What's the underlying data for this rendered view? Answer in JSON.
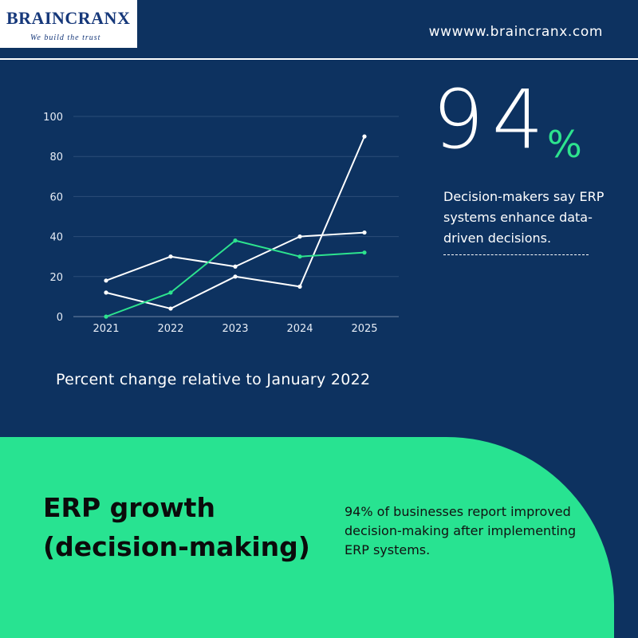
{
  "brand": {
    "logo_text": "BRAINCRANX",
    "tagline": "We build the trust",
    "url": "wwwww.braincranx.com"
  },
  "colors": {
    "background": "#0d3260",
    "accent_green": "#28e391",
    "line_white": "#ffffff",
    "line_green": "#2de38e"
  },
  "chart_data": {
    "type": "line",
    "categories": [
      "2021",
      "2022",
      "2023",
      "2024",
      "2025"
    ],
    "series": [
      {
        "values": [
          18,
          30,
          25,
          40,
          42
        ],
        "color": "#ffffff"
      },
      {
        "values": [
          12,
          4,
          20,
          15,
          90
        ],
        "color": "#ffffff"
      },
      {
        "values": [
          0,
          12,
          38,
          30,
          32
        ],
        "color": "#2de38e"
      }
    ],
    "ylim": [
      0,
      100
    ],
    "yticks": [
      0,
      20,
      40,
      60,
      80,
      100
    ],
    "grid": true,
    "caption": "Percent change relative to January 2022"
  },
  "stat": {
    "number": "94",
    "unit": "%",
    "text": "Decision-makers say ERP systems enhance data-driven decisions."
  },
  "panel": {
    "heading": "ERP growth (decision-making)",
    "body": "94% of businesses report improved decision-making after implementing ERP systems."
  }
}
